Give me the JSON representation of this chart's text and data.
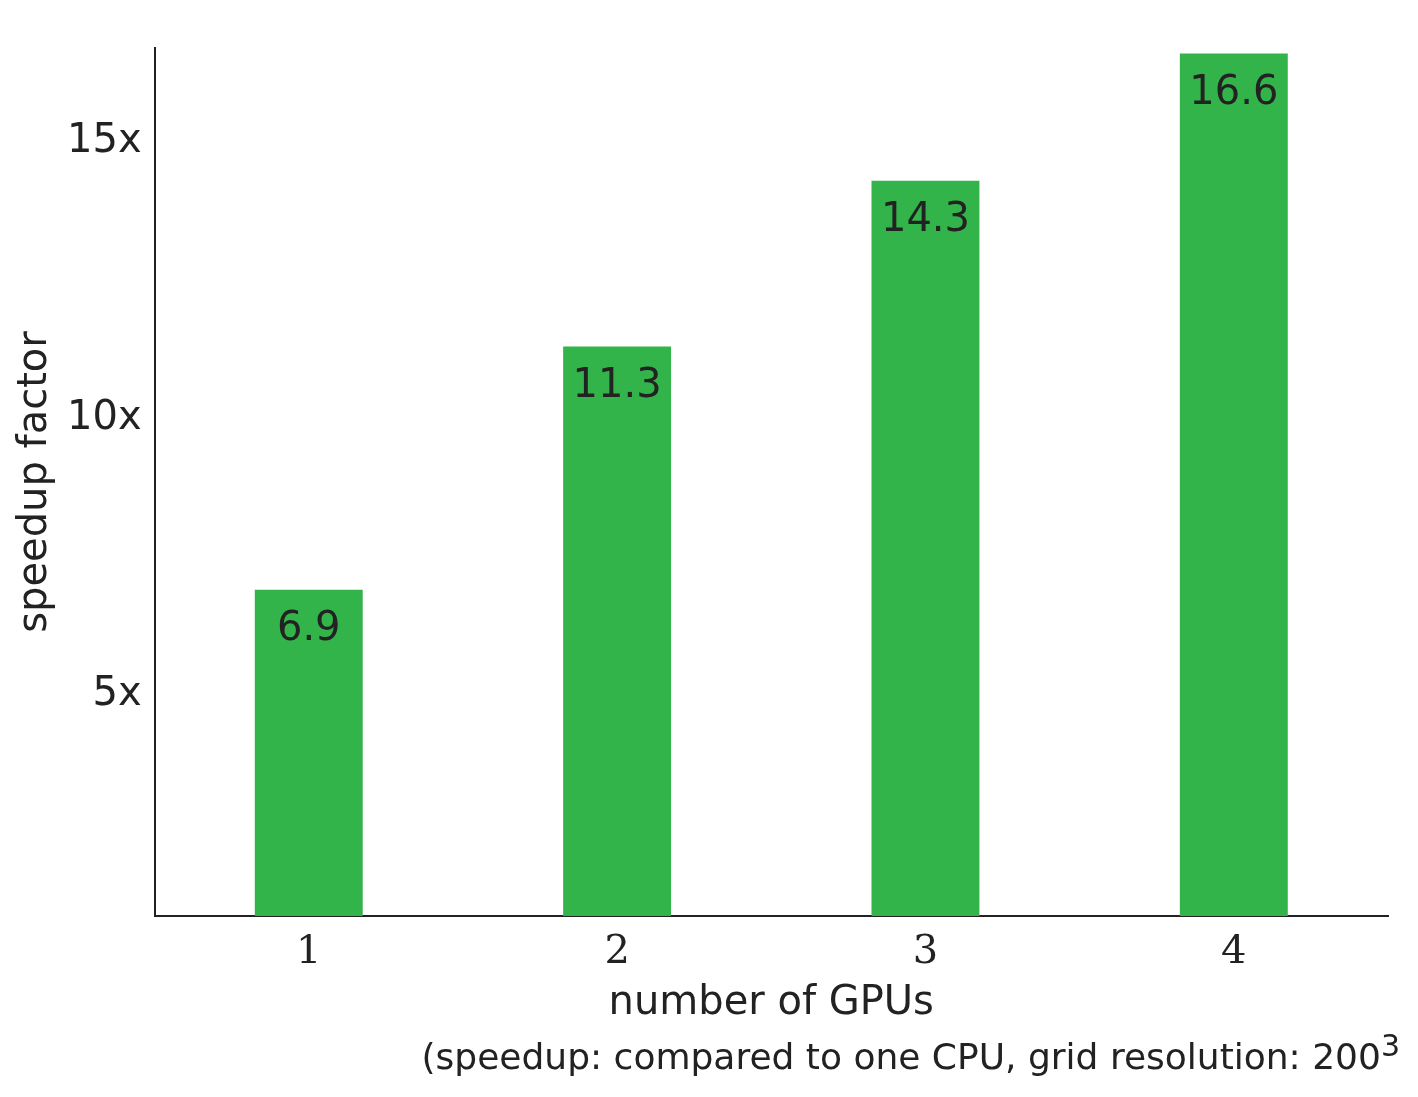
{
  "chart_data": {
    "type": "bar",
    "xlabel": "number of GPUs",
    "ylabel": "speedup factor",
    "categories": [
      "1",
      "2",
      "3",
      "4"
    ],
    "values": [
      6.9,
      11.3,
      14.3,
      16.6
    ],
    "color": "#33b44a",
    "ylim": [
      1,
      16.7
    ],
    "yticks": [
      {
        "value": 5,
        "label": "5x"
      },
      {
        "value": 10,
        "label": "10x"
      },
      {
        "value": 15,
        "label": "15x"
      }
    ],
    "data_labels": true,
    "grid": false,
    "legend": false,
    "annotations": [
      "(speedup: compared to one CPU, grid resolution: 200$^{3}$"
    ]
  }
}
